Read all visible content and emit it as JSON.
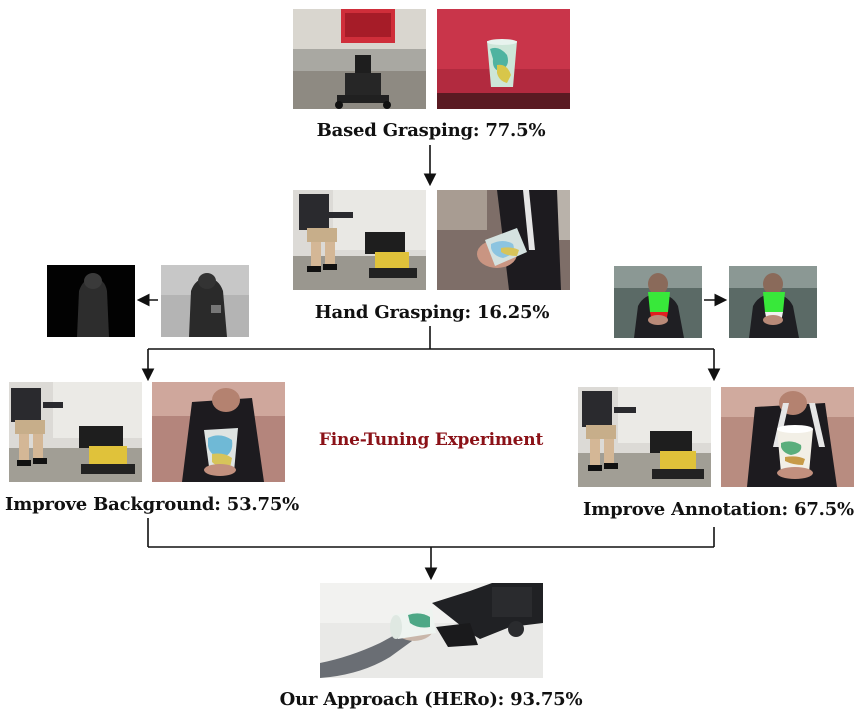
{
  "stages": {
    "based": "Based Grasping: 77.5%",
    "hand": "Hand Grasping: 16.25%",
    "background": "Improve Background: 53.75%",
    "annotation": "Improve Annotation: 67.5%",
    "approach": "Our Approach (HERo): 93.75%"
  },
  "center_title": "Fine-Tuning Experiment",
  "colors": {
    "arrow": "#111111",
    "title_red": "#8b1218",
    "mask_green": "#38e83a",
    "mask_red": "#e02020"
  }
}
